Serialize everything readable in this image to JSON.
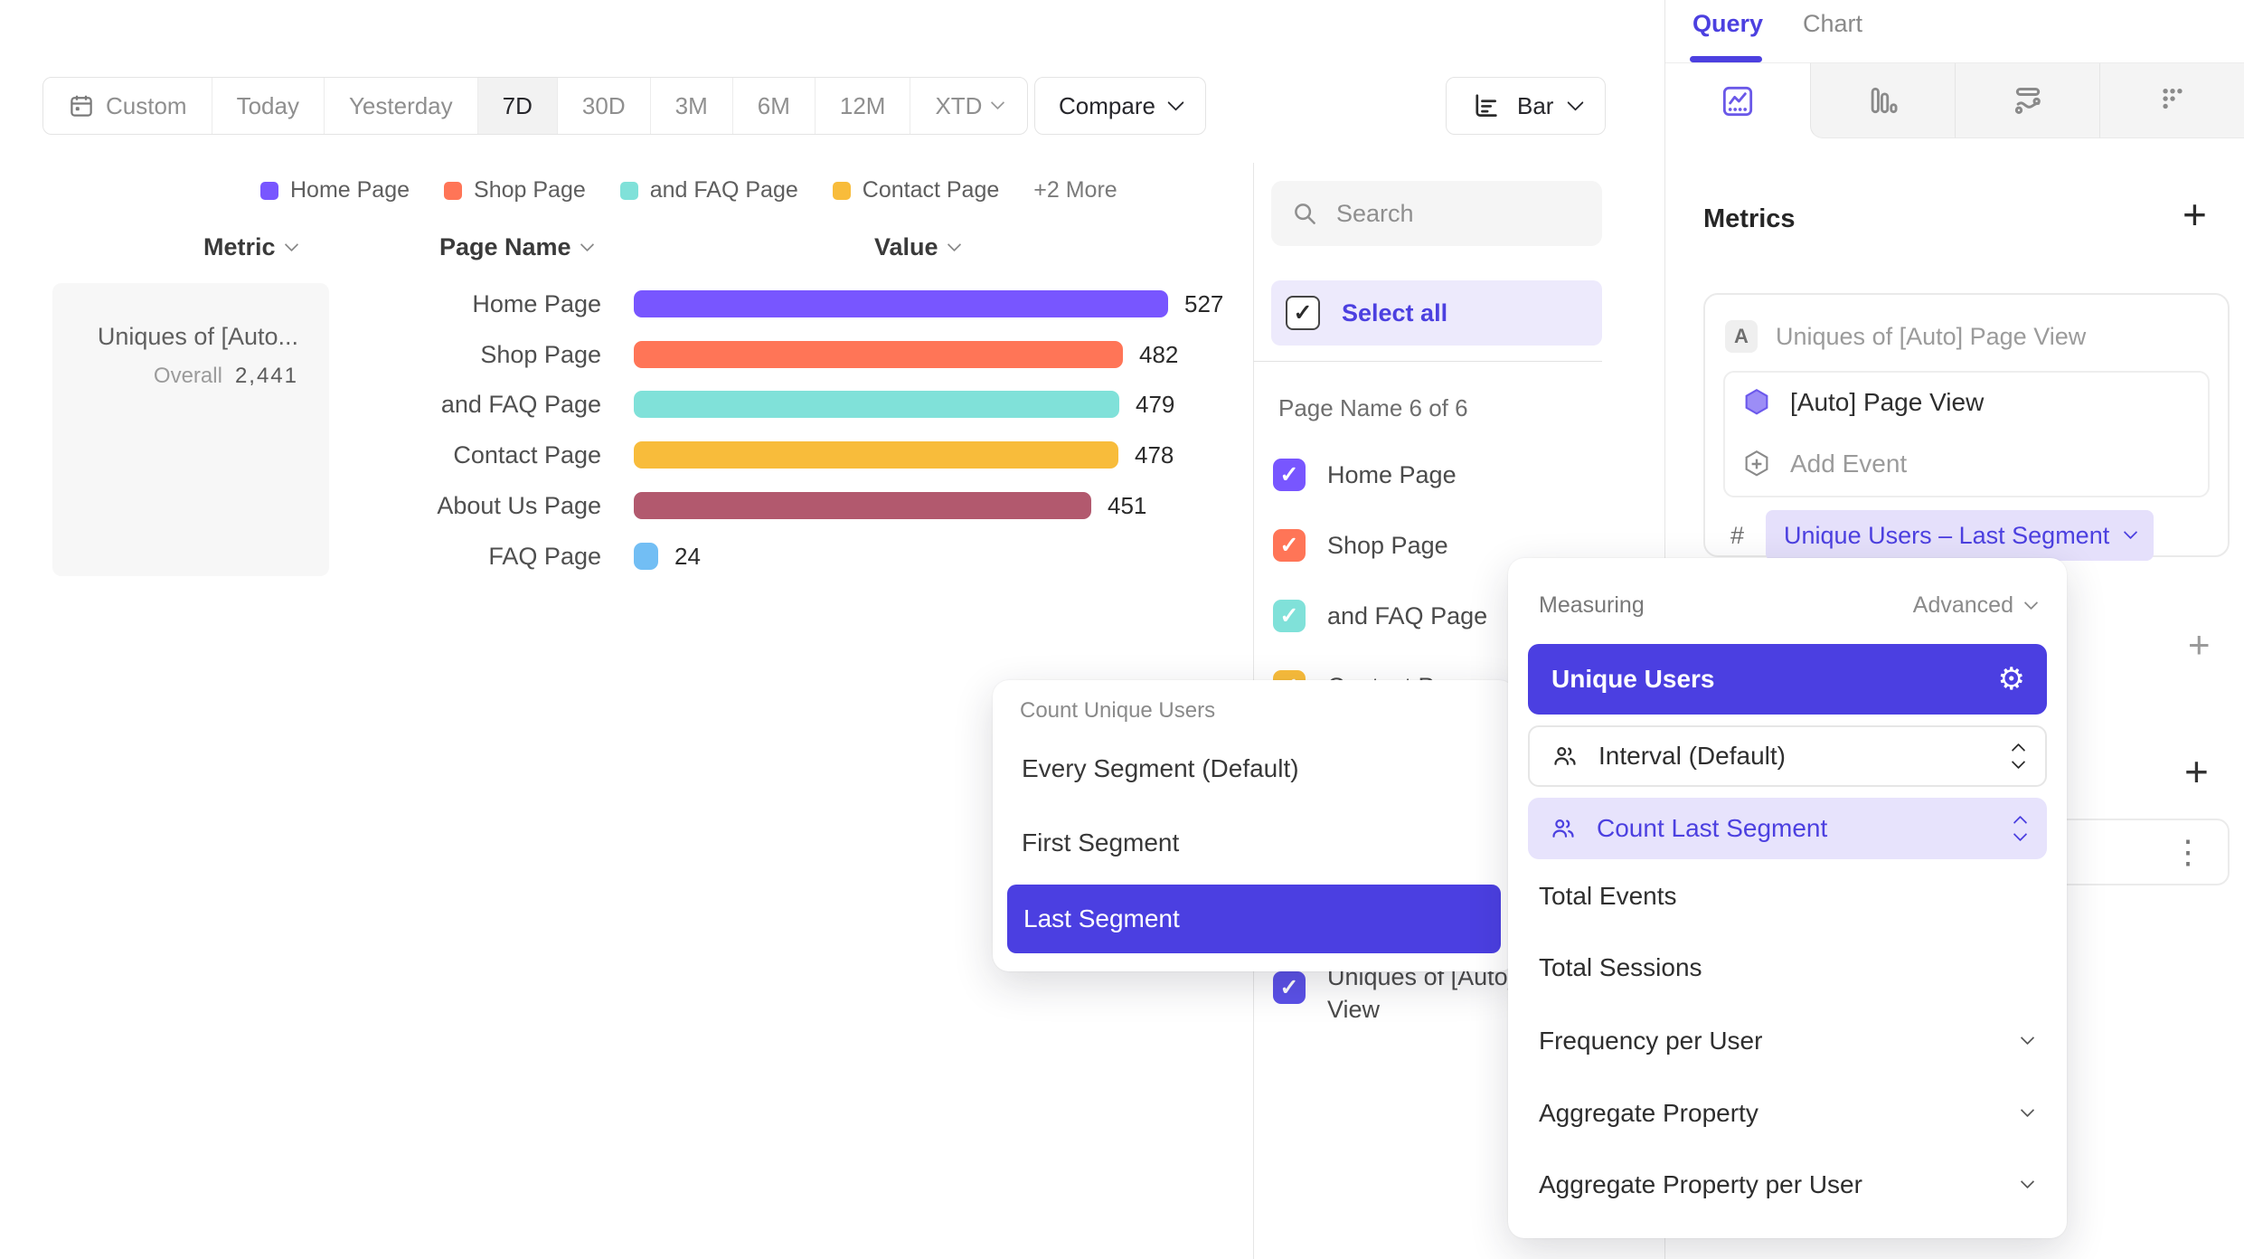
{
  "toolbar": {
    "date_ranges": [
      "Custom",
      "Today",
      "Yesterday",
      "7D",
      "30D",
      "3M",
      "6M",
      "12M",
      "XTD"
    ],
    "active_range": "7D",
    "compare_label": "Compare",
    "chart_type": "Bar"
  },
  "legend": {
    "items": [
      {
        "label": "Home Page",
        "color": "#7856FF"
      },
      {
        "label": "Shop Page",
        "color": "#FF7557"
      },
      {
        "label": "and FAQ Page",
        "color": "#80E1D9"
      },
      {
        "label": "Contact Page",
        "color": "#F8BC3B"
      }
    ],
    "more_label": "+2 More"
  },
  "table": {
    "headers": [
      "Metric",
      "Page Name",
      "Value"
    ]
  },
  "metric_cell": {
    "title": "Uniques of [Auto...",
    "overall_label": "Overall",
    "overall_value": "2,441"
  },
  "chart_data": {
    "type": "bar",
    "orientation": "horizontal",
    "categories": [
      "Home Page",
      "Shop Page",
      "and FAQ Page",
      "Contact Page",
      "About Us Page",
      "FAQ Page"
    ],
    "values": [
      527,
      482,
      479,
      478,
      451,
      24
    ],
    "colors": [
      "#7856FF",
      "#FF7557",
      "#80E1D9",
      "#F8BC3B",
      "#B2596E",
      "#72BEF4"
    ],
    "metric": "Uniques of [Auto] Page View",
    "overall_total": 2441,
    "value_labels_shown": true,
    "xlim": [
      0,
      527
    ]
  },
  "filter_panel": {
    "search_placeholder": "Search",
    "select_all": "Select all",
    "group_label": "Page Name 6 of 6",
    "items": [
      {
        "label": "Home Page",
        "color": "#7856FF"
      },
      {
        "label": "Shop Page",
        "color": "#FF7557"
      },
      {
        "label": "and FAQ Page",
        "color": "#80E1D9"
      },
      {
        "label": "Contact Page",
        "color": "#F8BC3B"
      }
    ],
    "bottom_item": {
      "label": "Uniques of [Auto] Page View",
      "color": "#5B51E8"
    }
  },
  "sidebar": {
    "tabs": [
      "Query",
      "Chart"
    ],
    "active_tab": "Query",
    "metrics": {
      "heading": "Metrics",
      "badge": "A",
      "metric_name": "Uniques of [Auto] Page View",
      "event_name": "[Auto] Page View",
      "add_event": "Add Event",
      "measure_prefix": "#",
      "measure_value": "Unique Users – Last Segment"
    }
  },
  "measuring_menu": {
    "title": "Measuring",
    "advanced": "Advanced",
    "selected_option": "Unique Users",
    "rows": [
      {
        "label": "Interval (Default)",
        "selected": false
      },
      {
        "label": "Count Last Segment",
        "selected": true
      }
    ],
    "options": [
      "Total Events",
      "Total Sessions"
    ],
    "expandable_options": [
      "Frequency per User",
      "Aggregate Property",
      "Aggregate Property per User"
    ]
  },
  "segment_menu": {
    "title": "Count Unique Users",
    "options": [
      "Every Segment (Default)",
      "First Segment",
      "Last Segment"
    ],
    "selected": "Last Segment"
  },
  "icons": {
    "check": "✓",
    "gear": "⚙",
    "kebab": "⋮",
    "plus": "+"
  },
  "colors": {
    "accent_text": "#4C40E0",
    "accent_button": "#4B3FE1",
    "accent_light": "#EDEAFC",
    "row_highlight": "#E7E3FC",
    "pill_bg": "#E5E0FB"
  }
}
